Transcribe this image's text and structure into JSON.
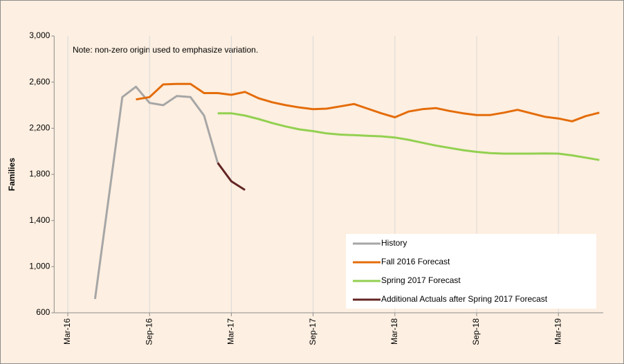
{
  "chart_data": {
    "type": "line",
    "note": "Note: non-zero origin used to emphasize variation.",
    "y_label": "Families",
    "categories": [
      null,
      "Mar-16",
      null,
      null,
      null,
      null,
      null,
      "Sep-16",
      null,
      null,
      null,
      null,
      null,
      "Mar-17",
      null,
      null,
      null,
      null,
      null,
      "Sep-17",
      null,
      null,
      null,
      null,
      null,
      "Mar-18",
      null,
      null,
      null,
      null,
      null,
      "Sep-18",
      null,
      null,
      null,
      null,
      null,
      "Mar-19",
      null,
      null,
      null
    ],
    "series": [
      {
        "name": "History",
        "color": "#a6a6a6",
        "values": [
          null,
          null,
          null,
          720,
          1595,
          2470,
          2560,
          2420,
          2400,
          2480,
          2470,
          2310,
          1900,
          null,
          null,
          null,
          null,
          null,
          null,
          null,
          null,
          null,
          null,
          null,
          null,
          null,
          null,
          null,
          null,
          null,
          null,
          null,
          null,
          null,
          null,
          null,
          null,
          null,
          null,
          null,
          null
        ]
      },
      {
        "name": "Fall 2016 Forecast",
        "color": "#e46c0a",
        "values": [
          null,
          null,
          null,
          null,
          null,
          null,
          2450,
          2470,
          2580,
          2585,
          2585,
          2505,
          2505,
          2490,
          2515,
          2460,
          2425,
          2400,
          2380,
          2365,
          2370,
          2390,
          2410,
          2370,
          2330,
          2295,
          2345,
          2365,
          2375,
          2350,
          2330,
          2315,
          2315,
          2335,
          2360,
          2330,
          2300,
          2285,
          2260,
          2305,
          2335
        ]
      },
      {
        "name": "Spring 2017 Forecast",
        "color": "#92d050",
        "values": [
          null,
          null,
          null,
          null,
          null,
          null,
          null,
          null,
          null,
          null,
          null,
          null,
          2330,
          2330,
          2310,
          2280,
          2245,
          2215,
          2190,
          2175,
          2155,
          2145,
          2140,
          2135,
          2130,
          2120,
          2100,
          2075,
          2050,
          2030,
          2010,
          1995,
          1985,
          1980,
          1980,
          1980,
          1982,
          1980,
          1965,
          1945,
          1925
        ]
      },
      {
        "name": "Additional Actuals after Spring 2017 Forecast",
        "color": "#632523",
        "values": [
          null,
          null,
          null,
          null,
          null,
          null,
          null,
          null,
          null,
          null,
          null,
          null,
          1900,
          1740,
          1665,
          null,
          null,
          null,
          null,
          null,
          null,
          null,
          null,
          null,
          null,
          null,
          null,
          null,
          null,
          null,
          null,
          null,
          null,
          null,
          null,
          null,
          null,
          null,
          null,
          null,
          null
        ]
      }
    ],
    "ylim": [
      600,
      3000
    ],
    "yticks": [
      600,
      {
        "value": 1000,
        "label": "1,000"
      },
      {
        "value": 1400,
        "label": "1,400"
      },
      {
        "value": 1800,
        "label": "1,800"
      },
      {
        "value": 2200,
        "label": "2,200"
      },
      {
        "value": 2600,
        "label": "2,600"
      },
      {
        "value": 3000,
        "label": "3,000"
      }
    ],
    "grid": "x",
    "legend": "lower right"
  }
}
